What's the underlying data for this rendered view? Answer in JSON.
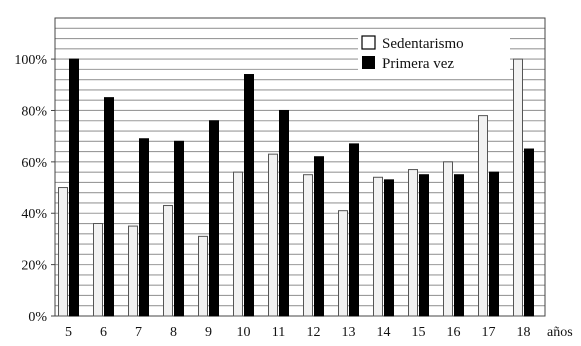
{
  "chart_data": {
    "type": "bar",
    "title": "",
    "xlabel": "años",
    "ylabel": "",
    "categories": [
      "5",
      "6",
      "7",
      "8",
      "9",
      "10",
      "11",
      "12",
      "13",
      "14",
      "15",
      "16",
      "17",
      "18"
    ],
    "series": [
      {
        "name": "Sedentarismo",
        "color": "#f2f2f2",
        "values": [
          50,
          36,
          35,
          43,
          31,
          56,
          63,
          55,
          41,
          54,
          57,
          60,
          78,
          100
        ]
      },
      {
        "name": "Primera vez",
        "color": "#000000",
        "values": [
          100,
          85,
          69,
          68,
          76,
          94,
          80,
          62,
          67,
          53,
          55,
          55,
          56,
          65
        ]
      }
    ],
    "yticks": [
      "0%",
      "20%",
      "40%",
      "60%",
      "80%",
      "100%"
    ],
    "ytick_values": [
      0,
      20,
      40,
      60,
      80,
      100
    ],
    "ylim": [
      0,
      116
    ],
    "grid": "horizontal",
    "legend_position": "top-right"
  }
}
